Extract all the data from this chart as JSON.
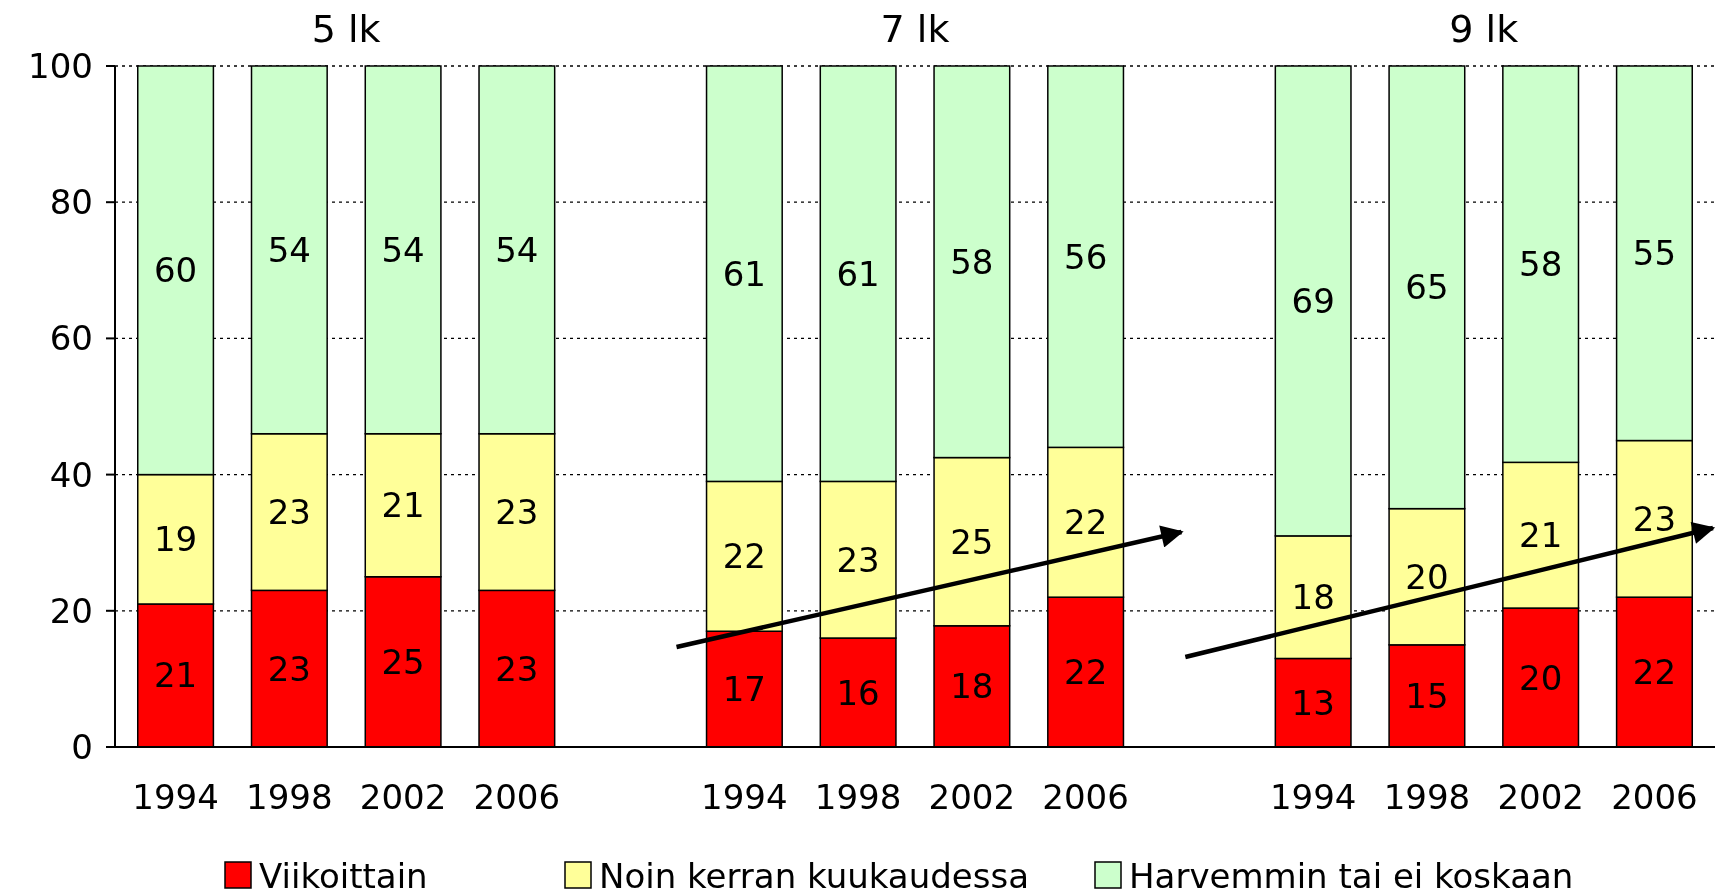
{
  "chart_data": {
    "type": "bar",
    "stacked": true,
    "categories": [
      "1994",
      "1998",
      "2002",
      "2006",
      null,
      "1994",
      "1998",
      "2002",
      "2006",
      null,
      "1994",
      "1998",
      "2002",
      "2006"
    ],
    "series": [
      {
        "name": "Viikoittain",
        "color": "#ff0000",
        "values": [
          21,
          23,
          25,
          23,
          null,
          17,
          16,
          17.8,
          22,
          null,
          13,
          15,
          20.4,
          22
        ],
        "value_labels": [
          "21",
          "23",
          "25",
          "23",
          null,
          "17",
          "16",
          "18",
          "22",
          null,
          "13",
          "15",
          "20",
          "22"
        ]
      },
      {
        "name": "Noin kerran kuukaudessa",
        "color": "#ffff99",
        "values": [
          19,
          23,
          21,
          23,
          null,
          22,
          23,
          24.7,
          22,
          null,
          18,
          20,
          21.4,
          23
        ],
        "value_labels": [
          "19",
          "23",
          "21",
          "23",
          null,
          "22",
          "23",
          "25",
          "22",
          null,
          "18",
          "20",
          "21",
          "23"
        ]
      },
      {
        "name": "Harvemmin tai ei koskaan",
        "color": "#ccffcc",
        "values": [
          60,
          54,
          54,
          54,
          null,
          61,
          61,
          57.5,
          56,
          null,
          69,
          65,
          58.2,
          55
        ],
        "value_labels": [
          "60",
          "54",
          "54",
          "54",
          null,
          "61",
          "61",
          "58",
          "56",
          null,
          "69",
          "65",
          "58",
          "55"
        ]
      }
    ],
    "annotations": [
      "5 lk",
      "7 lk",
      "9 lk"
    ],
    "ylim": [
      0,
      100
    ],
    "yticks": [
      0,
      20,
      40,
      60,
      80,
      100
    ],
    "grid": "y",
    "legend": "bottom"
  }
}
